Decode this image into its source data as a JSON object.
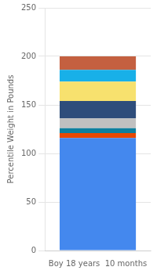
{
  "chart_data": {
    "type": "bar",
    "stacked": true,
    "categories": [
      "Boy 18 years  10 months"
    ],
    "series": [
      {
        "color": "#4488ee",
        "values": [
          116
        ]
      },
      {
        "color": "#e84800",
        "values": [
          5
        ]
      },
      {
        "color": "#0e7f9e",
        "values": [
          5
        ]
      },
      {
        "color": "#c0c0c0",
        "values": [
          10
        ]
      },
      {
        "color": "#2e4d7b",
        "values": [
          18
        ]
      },
      {
        "color": "#f7e16e",
        "values": [
          20
        ]
      },
      {
        "color": "#18b0e8",
        "values": [
          12
        ]
      },
      {
        "color": "#c46040",
        "values": [
          14
        ]
      }
    ],
    "ylabel": "Percentile Weight in Pounds",
    "ylim": [
      0,
      250
    ],
    "yticks": [
      0,
      50,
      100,
      150,
      200,
      250
    ],
    "grid": true
  }
}
